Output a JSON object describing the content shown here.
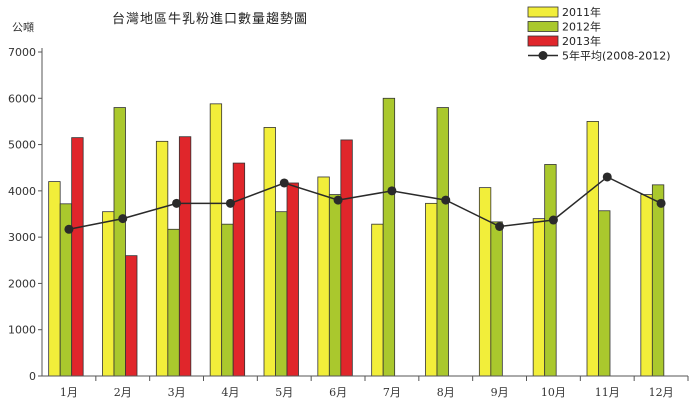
{
  "chart_data": {
    "type": "bar",
    "title": "台灣地區牛乳粉進口數量趨勢圖",
    "ylabel": "公噸",
    "ylim": [
      0,
      7000
    ],
    "yticks": [
      0,
      1000,
      2000,
      3000,
      4000,
      5000,
      6000,
      7000
    ],
    "grid": false,
    "legend_position": "top-right",
    "categories": [
      "1月",
      "2月",
      "3月",
      "4月",
      "5月",
      "6月",
      "7月",
      "8月",
      "9月",
      "10月",
      "11月",
      "12月"
    ],
    "series": [
      {
        "name": "2011年",
        "color": "#f2ee3a",
        "values": [
          4200,
          3550,
          5070,
          5880,
          5370,
          4300,
          3280,
          3730,
          4070,
          3400,
          5500,
          3920
        ]
      },
      {
        "name": "2012年",
        "color": "#aac82d",
        "values": [
          3720,
          5800,
          3170,
          3280,
          3550,
          3920,
          6000,
          5800,
          3330,
          4570,
          3570,
          4130
        ]
      },
      {
        "name": "2013年",
        "color": "#e0262b",
        "values": [
          5150,
          2600,
          5170,
          4600,
          4170,
          5100,
          null,
          null,
          null,
          null,
          null,
          null
        ]
      }
    ],
    "line": {
      "name": "5年平均(2008-2012)",
      "color": "#2a2a2a",
      "values": [
        3170,
        3400,
        3730,
        3730,
        4170,
        3800,
        4000,
        3800,
        3230,
        3370,
        4300,
        3730
      ]
    }
  }
}
